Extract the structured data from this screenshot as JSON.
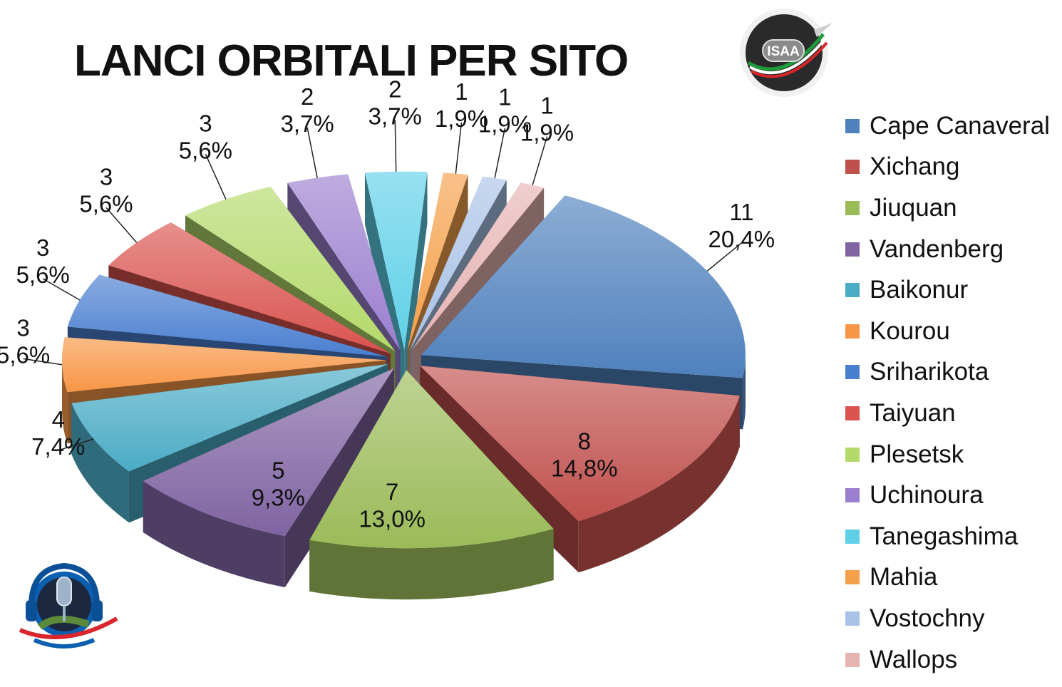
{
  "chart_data": {
    "type": "pie",
    "title": "LANCI ORBITALI PER SITO",
    "categories": [
      "Cape Canaveral",
      "Xichang",
      "Jiuquan",
      "Vandenberg",
      "Baikonur",
      "Kourou",
      "Sriharikota",
      "Taiyuan",
      "Plesetsk",
      "Uchinoura",
      "Tanegashima",
      "Mahia",
      "Vostochny",
      "Wallops"
    ],
    "values": [
      11,
      8,
      7,
      5,
      4,
      3,
      3,
      3,
      3,
      2,
      2,
      1,
      1,
      1
    ],
    "percent_labels": [
      "20,4%",
      "14,8%",
      "13,0%",
      "9,3%",
      "7,4%",
      "5,6%",
      "5,6%",
      "5,6%",
      "5,6%",
      "3,7%",
      "3,7%",
      "1,9%",
      "1,9%",
      "1,9%"
    ],
    "colors": [
      "#4f81bd",
      "#c0504d",
      "#9bbb59",
      "#8064a2",
      "#4bacc6",
      "#f79646",
      "#4a7fd0",
      "#d9534f",
      "#b3d96a",
      "#9b7fcf",
      "#5fd0e8",
      "#f5a04a",
      "#a9c2e6",
      "#e6b3b3"
    ],
    "legend_position": "right"
  },
  "logos": {
    "isaa": "ISAA"
  }
}
